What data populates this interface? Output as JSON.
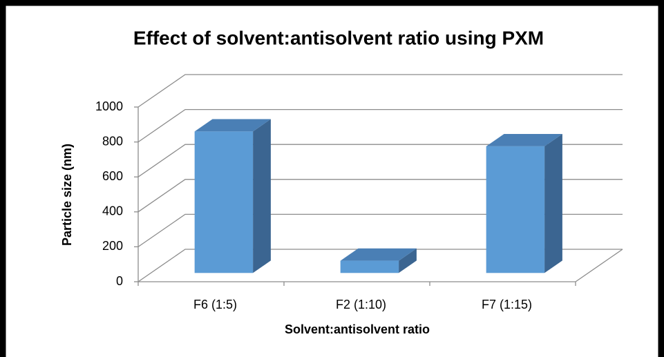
{
  "chart_data": {
    "type": "bar3d",
    "title": "Effect of solvent:antisolvent ratio using PXM",
    "x_label": "Solvent:antisolvent ratio",
    "y_label": "Particle size (nm)",
    "categories": [
      "F6 (1:5)",
      "F2 (1:10)",
      "F7 (1:15)"
    ],
    "values": [
      810,
      70,
      725
    ],
    "color": "#5b9bd5",
    "ylim": [
      0,
      1000
    ],
    "yticks": [
      0,
      200,
      400,
      600,
      800,
      1000
    ],
    "grid": true
  }
}
